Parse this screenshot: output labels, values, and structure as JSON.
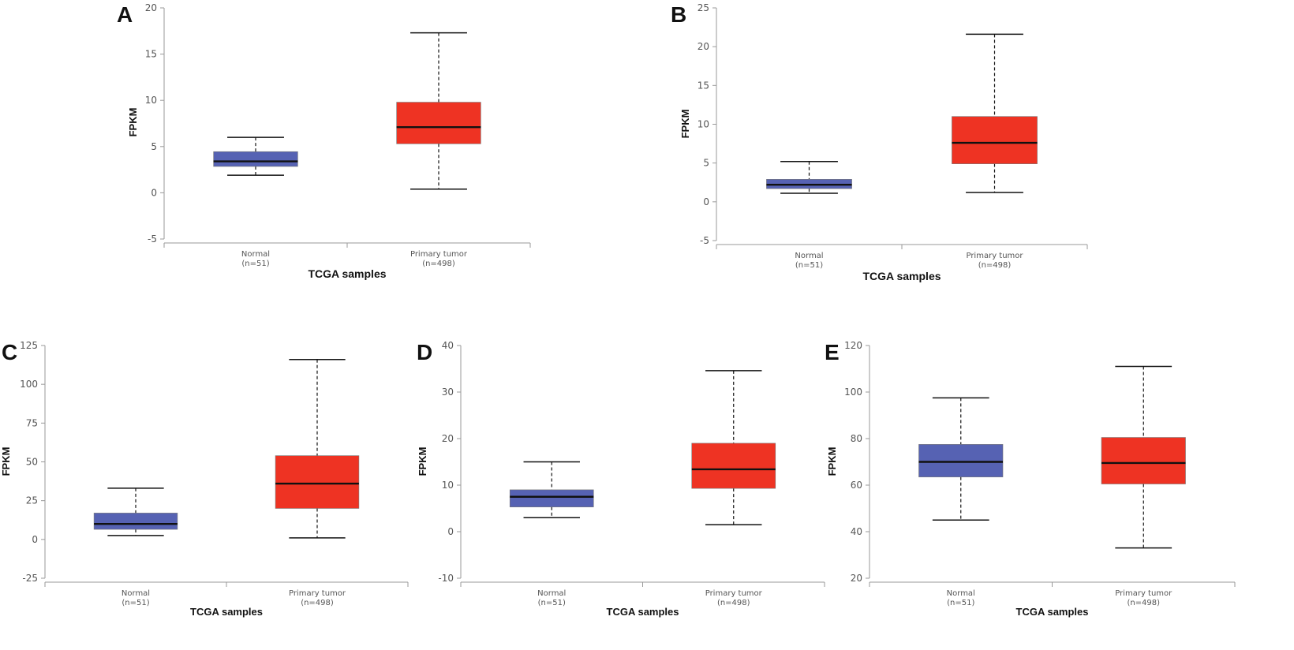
{
  "chart_data": [
    {
      "panel": "A",
      "type": "box",
      "ylabel": "FPKM",
      "xlabel": "TCGA samples",
      "ylim": [
        -5,
        20
      ],
      "yticks": [
        -5,
        0,
        5,
        10,
        15,
        20
      ],
      "categories": [
        {
          "name": "Normal",
          "n": "(n=51)",
          "min": 1.9,
          "q1": 2.85,
          "median": 3.4,
          "q3": 4.45,
          "max": 6.0,
          "color": "#5662b3"
        },
        {
          "name": "Primary tumor",
          "n": "(n=498)",
          "min": 0.4,
          "q1": 5.3,
          "median": 7.1,
          "q3": 9.8,
          "max": 17.3,
          "color": "#ee3323"
        }
      ]
    },
    {
      "panel": "B",
      "type": "box",
      "ylabel": "FPKM",
      "xlabel": "TCGA samples",
      "ylim": [
        -5,
        25
      ],
      "yticks": [
        -5,
        0,
        5,
        10,
        15,
        20,
        25
      ],
      "categories": [
        {
          "name": "Normal",
          "n": "(n=51)",
          "min": 1.1,
          "q1": 1.7,
          "median": 2.2,
          "q3": 2.9,
          "max": 5.2,
          "color": "#5662b3"
        },
        {
          "name": "Primary tumor",
          "n": "(n=498)",
          "min": 1.2,
          "q1": 4.9,
          "median": 7.6,
          "q3": 11.0,
          "max": 21.6,
          "color": "#ee3323"
        }
      ]
    },
    {
      "panel": "C",
      "type": "box",
      "ylabel": "FPKM",
      "xlabel": "TCGA samples",
      "ylim": [
        -25,
        125
      ],
      "yticks": [
        -25,
        0,
        25,
        50,
        75,
        100,
        125
      ],
      "categories": [
        {
          "name": "Normal",
          "n": "(n=51)",
          "min": 2.5,
          "q1": 6.5,
          "median": 10.0,
          "q3": 17.0,
          "max": 33.0,
          "color": "#5662b3"
        },
        {
          "name": "Primary tumor",
          "n": "(n=498)",
          "min": 1.0,
          "q1": 20.0,
          "median": 36.0,
          "q3": 54.0,
          "max": 116.0,
          "color": "#ee3323"
        }
      ]
    },
    {
      "panel": "D",
      "type": "box",
      "ylabel": "FPKM",
      "xlabel": "TCGA samples",
      "ylim": [
        -10,
        40
      ],
      "yticks": [
        -10,
        0,
        10,
        20,
        30,
        40
      ],
      "categories": [
        {
          "name": "Normal",
          "n": "(n=51)",
          "min": 3.0,
          "q1": 5.3,
          "median": 7.5,
          "q3": 9.0,
          "max": 15.0,
          "color": "#5662b3"
        },
        {
          "name": "Primary tumor",
          "n": "(n=498)",
          "min": 1.5,
          "q1": 9.3,
          "median": 13.4,
          "q3": 19.0,
          "max": 34.6,
          "color": "#ee3323"
        }
      ]
    },
    {
      "panel": "E",
      "type": "box",
      "ylabel": "FPKM",
      "xlabel": "TCGA samples",
      "ylim": [
        20,
        120
      ],
      "yticks": [
        20,
        40,
        60,
        80,
        100,
        120
      ],
      "categories": [
        {
          "name": "Normal",
          "n": "(n=51)",
          "min": 45.0,
          "q1": 63.5,
          "median": 70.0,
          "q3": 77.5,
          "max": 97.5,
          "color": "#5662b3"
        },
        {
          "name": "Primary tumor",
          "n": "(n=498)",
          "min": 33.0,
          "q1": 60.5,
          "median": 69.5,
          "q3": 80.5,
          "max": 111.0,
          "color": "#ee3323"
        }
      ]
    }
  ]
}
